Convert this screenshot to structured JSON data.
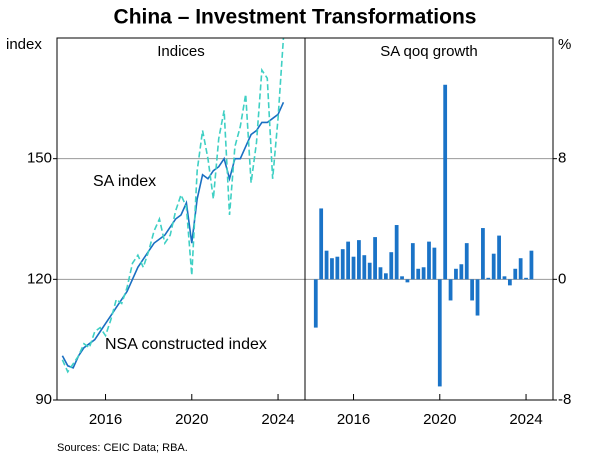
{
  "title": "China – Investment Transformations",
  "source": "Sources: CEIC Data; RBA.",
  "chart_data": [
    {
      "type": "line",
      "title": "Indices",
      "ylabel": "index",
      "x": [
        2014.0,
        2014.25,
        2014.5,
        2014.75,
        2015.0,
        2015.25,
        2015.5,
        2015.75,
        2016.0,
        2016.25,
        2016.5,
        2016.75,
        2017.0,
        2017.25,
        2017.5,
        2017.75,
        2018.0,
        2018.25,
        2018.5,
        2018.75,
        2019.0,
        2019.25,
        2019.5,
        2019.75,
        2020.0,
        2020.25,
        2020.5,
        2020.75,
        2021.0,
        2021.25,
        2021.5,
        2021.75,
        2022.0,
        2022.25,
        2022.5,
        2022.75,
        2023.0,
        2023.25,
        2023.5,
        2023.75,
        2024.0,
        2024.25
      ],
      "xlim": [
        2013.75,
        2025.25
      ],
      "xticks": [
        2016,
        2020,
        2024
      ],
      "ylim": [
        90,
        180
      ],
      "yticks": [
        90,
        120,
        150
      ],
      "y_side": "left",
      "grid": true,
      "series": [
        {
          "name": "SA index",
          "color": "#1a6fc2",
          "dashed": false,
          "values": [
            101,
            98.5,
            98,
            101,
            103,
            104,
            105,
            107,
            109,
            111,
            113,
            115,
            117,
            120,
            123,
            125,
            127,
            129,
            130,
            131,
            133,
            135,
            136,
            139,
            129,
            140,
            146,
            145,
            147,
            148,
            150,
            145,
            150,
            150,
            153,
            156,
            157,
            159,
            159,
            160,
            161,
            164
          ]
        },
        {
          "name": "NSA constructed index",
          "color": "#3fd0c4",
          "dashed": true,
          "values": [
            100,
            97,
            99,
            101,
            104,
            103,
            107,
            108,
            106,
            110,
            115,
            114,
            118,
            124,
            126,
            123,
            127,
            132,
            135,
            129,
            131,
            137,
            141,
            138,
            121,
            147,
            157,
            150,
            140,
            155,
            162,
            136,
            153,
            158,
            166,
            144,
            154,
            172,
            170,
            145,
            160,
            180
          ]
        }
      ]
    },
    {
      "type": "bar",
      "title": "SA qoq growth",
      "ylabel": "%",
      "x": [
        2014.25,
        2014.5,
        2014.75,
        2015.0,
        2015.25,
        2015.5,
        2015.75,
        2016.0,
        2016.25,
        2016.5,
        2016.75,
        2017.0,
        2017.25,
        2017.5,
        2017.75,
        2018.0,
        2018.25,
        2018.5,
        2018.75,
        2019.0,
        2019.25,
        2019.5,
        2019.75,
        2020.0,
        2020.25,
        2020.5,
        2020.75,
        2021.0,
        2021.25,
        2021.5,
        2021.75,
        2022.0,
        2022.25,
        2022.5,
        2022.75,
        2023.0,
        2023.25,
        2023.5,
        2023.75,
        2024.0,
        2024.25
      ],
      "values": [
        -3.2,
        4.7,
        1.9,
        1.4,
        1.5,
        2.0,
        2.5,
        1.5,
        2.6,
        1.6,
        1.1,
        2.8,
        0.8,
        0.4,
        1.8,
        3.6,
        0.2,
        -0.2,
        2.4,
        0.7,
        0.8,
        2.5,
        2.1,
        -7.1,
        12.9,
        -1.4,
        0.7,
        1.0,
        2.4,
        -1.4,
        -2.4,
        3.4,
        0.1,
        1.7,
        2.9,
        0.2,
        -0.4,
        0.7,
        1.4,
        0.1,
        1.9
      ],
      "color": "#1a73c7",
      "xlim": [
        2013.75,
        2025.25
      ],
      "xticks": [
        2016,
        2020,
        2024
      ],
      "ylim": [
        -8,
        16
      ],
      "yticks": [
        -8,
        0,
        8
      ],
      "y_side": "right",
      "grid": true
    }
  ]
}
